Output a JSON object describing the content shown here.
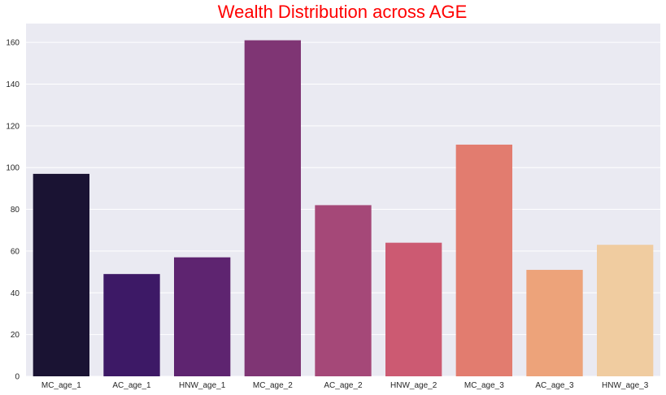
{
  "chart_data": {
    "type": "bar",
    "title": "Wealth Distribution across AGE",
    "title_color": "#ff0000",
    "xlabel": "",
    "ylabel": "",
    "categories": [
      "MC_age_1",
      "AC_age_1",
      "HNW_age_1",
      "MC_age_2",
      "AC_age_2",
      "HNW_age_2",
      "MC_age_3",
      "AC_age_3",
      "HNW_age_3"
    ],
    "values": [
      97,
      49,
      57,
      161,
      82,
      64,
      111,
      51,
      63
    ],
    "colors": [
      "#1a1333",
      "#3d1966",
      "#5e2470",
      "#7f3574",
      "#a54878",
      "#cc5a72",
      "#e27c6f",
      "#eda37a",
      "#f0cca0"
    ],
    "ylim": [
      0,
      169
    ],
    "yticks": [
      0,
      20,
      40,
      60,
      80,
      100,
      120,
      140,
      160
    ],
    "grid": true,
    "background": "#eaeaf2"
  }
}
